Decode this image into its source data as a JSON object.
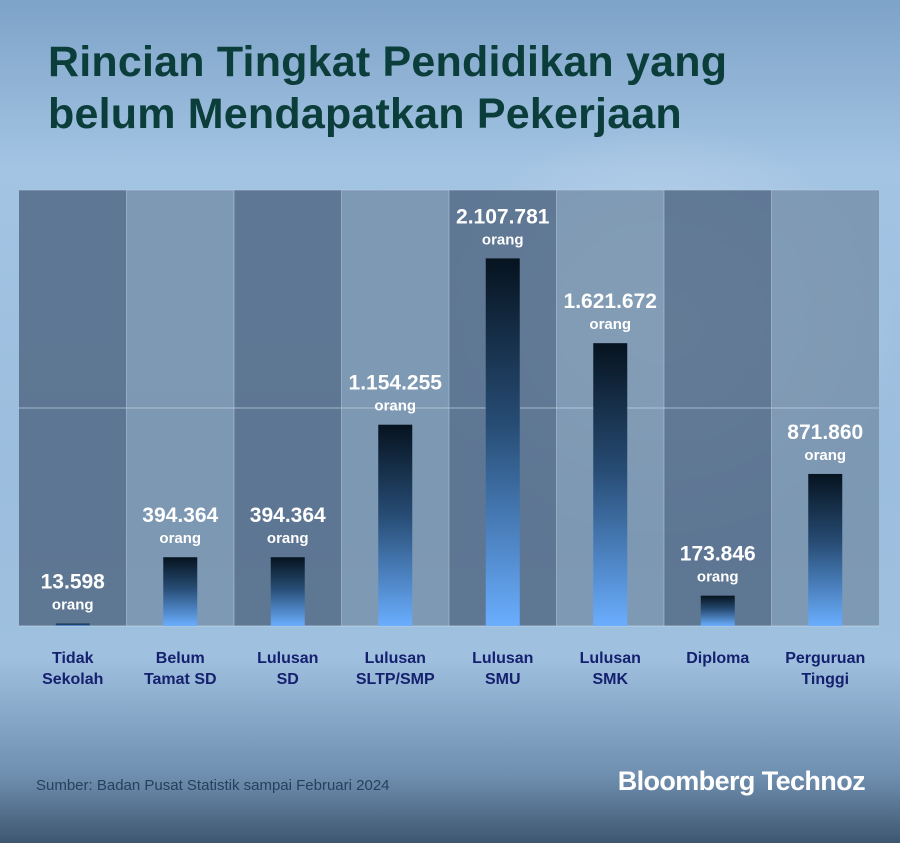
{
  "title_lines": [
    "Rincian Tingkat Pendidikan yang",
    "belum Mendapatkan Pekerjaan"
  ],
  "source": "Sumber: Badan Pusat Statistik sampai Februari 2024",
  "logo": "Bloomberg Technoz",
  "colors": {
    "title": "#0b3d3a",
    "bar_top": "#06131f",
    "bar_bottom": "#6aaefe",
    "label": "#15206e",
    "value": "#ffffff",
    "column_dark": "#4f6783",
    "column_light": "#7690aa"
  },
  "chart_data": {
    "type": "bar",
    "title": "Rincian Tingkat Pendidikan yang belum Mendapatkan Pekerjaan",
    "categories": [
      [
        "Tidak",
        "Sekolah"
      ],
      [
        "Belum",
        "Tamat SD"
      ],
      [
        "Lulusan",
        "SD"
      ],
      [
        "Lulusan",
        "SLTP/SMP"
      ],
      [
        "Lulusan",
        "SMU"
      ],
      [
        "Lulusan",
        "SMK"
      ],
      [
        "Diploma"
      ],
      [
        "Perguruan",
        "Tinggi"
      ]
    ],
    "values": [
      13598,
      394364,
      394364,
      1154255,
      2107781,
      1621672,
      173846,
      871860
    ],
    "value_labels": [
      "13.598",
      "394.364",
      "394.364",
      "1.154.255",
      "2.107.781",
      "1.621.672",
      "173.846",
      "871.860"
    ],
    "unit_label": "orang",
    "ylim": [
      0,
      2500000
    ],
    "grid": true
  }
}
